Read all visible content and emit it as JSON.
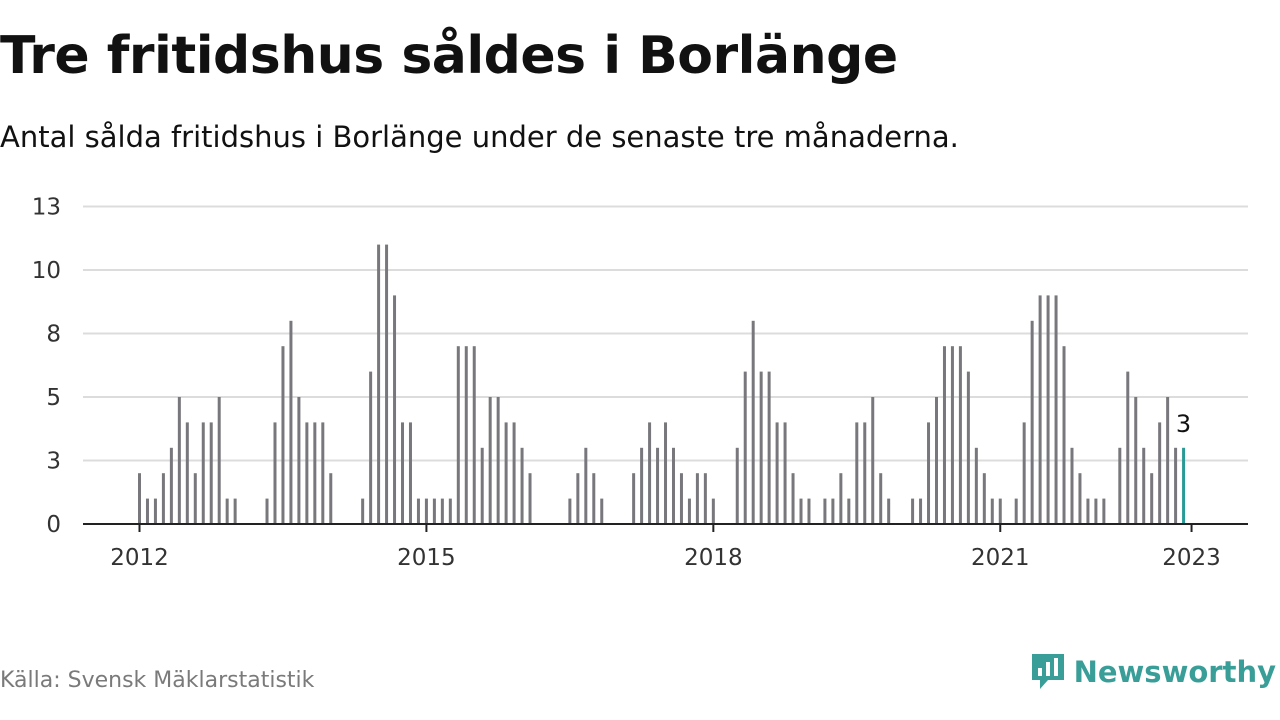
{
  "header": {
    "title": "Tre fritidshus såldes i Borlänge",
    "subtitle": "Antal sålda fritidshus i Borlänge under de senaste tre månaderna."
  },
  "footer": {
    "source": "Källa: Svensk Mäklarstatistik",
    "brand": "Newsworthy"
  },
  "colors": {
    "bar": "#78777c",
    "highlight": "#2a9a96",
    "grid": "#dcdcdc",
    "axis": "#222222",
    "brand": "#3a9e98"
  },
  "chart_data": {
    "type": "bar",
    "title": "Tre fritidshus såldes i Borlänge",
    "subtitle": "Antal sålda fritidshus i Borlänge under de senaste tre månaderna.",
    "xlabel": "",
    "ylabel": "",
    "ylim": [
      0,
      12
    ],
    "yticks": [
      {
        "value": 0,
        "label": "0"
      },
      {
        "value": 2.5,
        "label": "3"
      },
      {
        "value": 5,
        "label": "5"
      },
      {
        "value": 7.5,
        "label": "8"
      },
      {
        "value": 10,
        "label": "10"
      },
      {
        "value": 12.5,
        "label": "13"
      }
    ],
    "xticks": [
      {
        "month_index": 0,
        "label": "2012"
      },
      {
        "month_index": 36,
        "label": "2015"
      },
      {
        "month_index": 72,
        "label": "2018"
      },
      {
        "month_index": 108,
        "label": "2021"
      },
      {
        "month_index": 132,
        "label": "2023"
      }
    ],
    "grid": true,
    "x_start": "2012-01",
    "x_end": "2023-01",
    "values": [
      2,
      1,
      1,
      2,
      3,
      5,
      4,
      2,
      4,
      4,
      5,
      1,
      1,
      0,
      0,
      0,
      1,
      4,
      7,
      8,
      5,
      4,
      4,
      4,
      2,
      0,
      0,
      0,
      1,
      6,
      11,
      11,
      9,
      4,
      4,
      1,
      1,
      1,
      1,
      1,
      7,
      7,
      7,
      3,
      5,
      5,
      4,
      4,
      3,
      2,
      0,
      0,
      0,
      0,
      1,
      2,
      3,
      2,
      1,
      0,
      0,
      0,
      2,
      3,
      4,
      3,
      4,
      3,
      2,
      1,
      2,
      2,
      1,
      0,
      0,
      3,
      6,
      8,
      6,
      6,
      4,
      4,
      2,
      1,
      1,
      0,
      1,
      1,
      2,
      1,
      4,
      4,
      5,
      2,
      1,
      0,
      0,
      1,
      1,
      4,
      5,
      7,
      7,
      7,
      6,
      3,
      2,
      1,
      1,
      0,
      1,
      4,
      8,
      9,
      9,
      9,
      7,
      3,
      2,
      1,
      1,
      1,
      0,
      3,
      6,
      5,
      3,
      2,
      4,
      5,
      3
    ],
    "highlight": {
      "month_index": 131,
      "value": 3,
      "label": "3"
    }
  }
}
